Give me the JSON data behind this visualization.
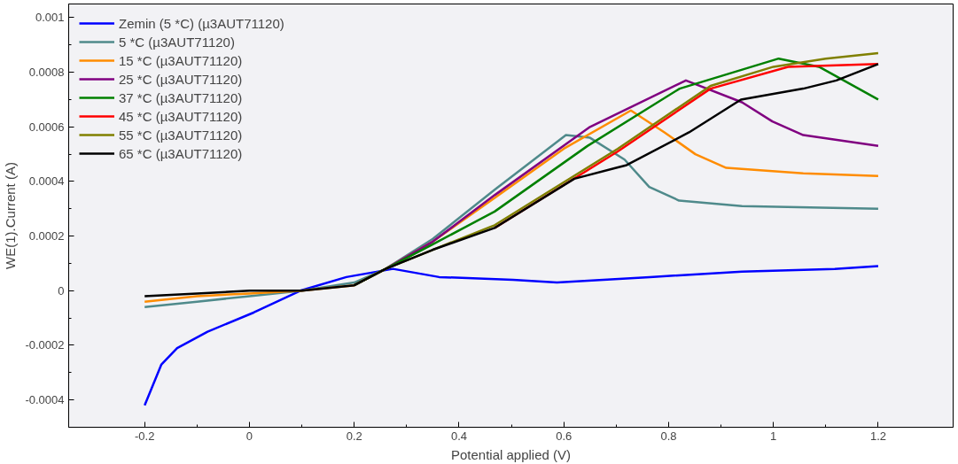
{
  "chart_data": {
    "type": "line",
    "xlabel": "Potential applied (V)",
    "ylabel": "WE(1).Current (A)",
    "xlim": [
      -0.345,
      1.343
    ],
    "ylim": [
      -0.0005,
      0.00105
    ],
    "xticks": [
      -0.2,
      0,
      0.2,
      0.4,
      0.6,
      0.8,
      1,
      1.2
    ],
    "yticks": [
      -0.0004,
      -0.0002,
      0,
      0.0002,
      0.0004,
      0.0006,
      0.0008,
      0.001
    ],
    "grid": false,
    "legend": "top left",
    "series": [
      {
        "name": "Zemin (5 *C) (µ3AUT71120)",
        "color": "#0000ff",
        "x": [
          -0.2,
          -0.168,
          -0.138,
          -0.08,
          0.008,
          0.097,
          0.185,
          0.274,
          0.362,
          0.503,
          0.587,
          0.764,
          0.94,
          1.117,
          1.2
        ],
        "values": [
          -0.00042,
          -0.00027,
          -0.00021,
          -0.00015,
          -8e-05,
          0,
          5e-05,
          8e-05,
          5e-05,
          4e-05,
          3e-05,
          5e-05,
          7e-05,
          8e-05,
          9e-05
        ]
      },
      {
        "name": "5 *C (µ3AUT71120)",
        "color": "#4f8a8b",
        "x": [
          -0.2,
          -0.1,
          0,
          0.1,
          0.2,
          0.26,
          0.35,
          0.468,
          0.604,
          0.65,
          0.716,
          0.763,
          0.82,
          0.94,
          1.2
        ],
        "values": [
          -6e-05,
          -4e-05,
          -2e-05,
          0,
          3e-05,
          8e-05,
          0.00019,
          0.00037,
          0.00057,
          0.00056,
          0.00048,
          0.00038,
          0.00033,
          0.00031,
          0.0003
        ]
      },
      {
        "name": "15 *C (µ3AUT71120)",
        "color": "#ff8c00",
        "x": [
          -0.2,
          -0.1,
          0,
          0.1,
          0.2,
          0.26,
          0.35,
          0.468,
          0.6,
          0.728,
          0.792,
          0.851,
          0.91,
          1.057,
          1.2
        ],
        "values": [
          -4e-05,
          -2e-05,
          -1e-05,
          0,
          2e-05,
          8e-05,
          0.00018,
          0.00034,
          0.00052,
          0.00066,
          0.00058,
          0.0005,
          0.00045,
          0.00043,
          0.00042
        ]
      },
      {
        "name": "25 *C (µ3AUT71120)",
        "color": "#800080",
        "x": [
          0.2,
          0.26,
          0.35,
          0.468,
          0.65,
          0.833,
          0.94,
          0.998,
          1.057,
          1.2
        ],
        "values": [
          2e-05,
          8e-05,
          0.00018,
          0.00035,
          0.0006,
          0.00077,
          0.00069,
          0.00062,
          0.00057,
          0.00053
        ]
      },
      {
        "name": "37 *C (µ3AUT71120)",
        "color": "#008000",
        "x": [
          0.2,
          0.26,
          0.35,
          0.468,
          0.645,
          0.821,
          1.01,
          1.087,
          1.2
        ],
        "values": [
          2e-05,
          8e-05,
          0.00017,
          0.00029,
          0.00053,
          0.00074,
          0.00085,
          0.00082,
          0.0007
        ]
      },
      {
        "name": "45 *C (µ3AUT71120)",
        "color": "#ff0000",
        "x": [
          0.468,
          0.703,
          0.88,
          1.028,
          1.2
        ],
        "values": [
          0.00023,
          0.00051,
          0.00074,
          0.00082,
          0.00083
        ]
      },
      {
        "name": "55 *C (µ3AUT71120)",
        "color": "#808000",
        "x": [
          0.2,
          0.26,
          0.35,
          0.468,
          0.703,
          0.88,
          1.0,
          1.1,
          1.2
        ],
        "values": [
          2e-05,
          8e-05,
          0.00015,
          0.00024,
          0.00052,
          0.00075,
          0.00082,
          0.00085,
          0.00087
        ]
      },
      {
        "name": "65 *C (µ3AUT71120)",
        "color": "#000000",
        "x": [
          -0.2,
          -0.1,
          0,
          0.1,
          0.2,
          0.26,
          0.35,
          0.468,
          0.62,
          0.7,
          0.72,
          0.839,
          0.938,
          1.057,
          1.12,
          1.2
        ],
        "values": [
          -2e-05,
          -1e-05,
          0,
          0,
          2e-05,
          8e-05,
          0.00015,
          0.00023,
          0.00041,
          0.00045,
          0.00046,
          0.00058,
          0.0007,
          0.00074,
          0.00077,
          0.00083
        ]
      }
    ]
  }
}
